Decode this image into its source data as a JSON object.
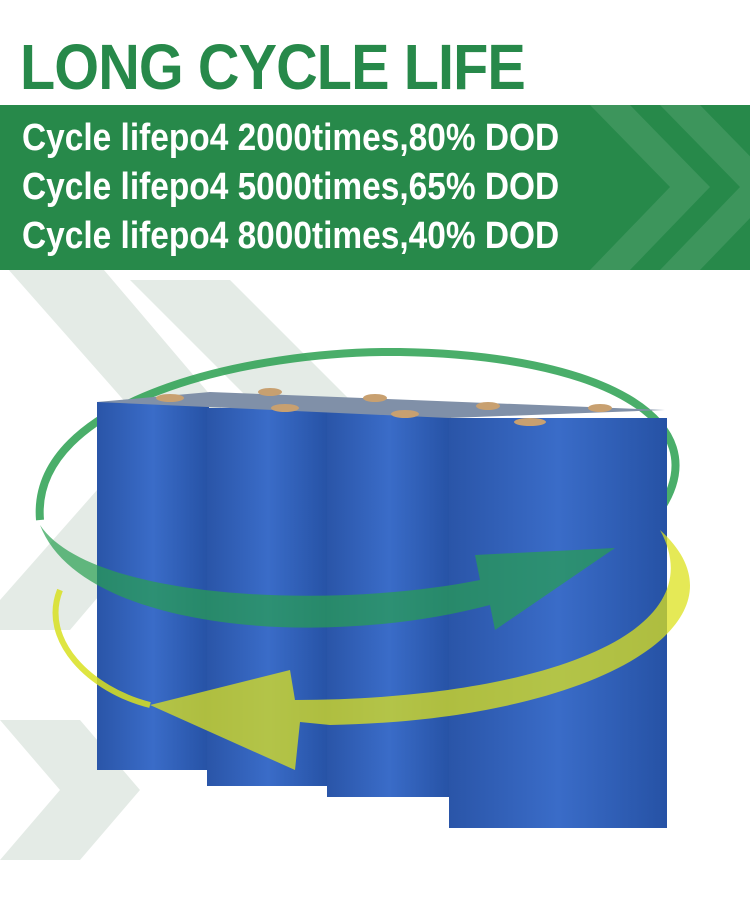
{
  "title": "LONG CYCLE LIFE",
  "specs": [
    "Cycle lifepo4 2000times,80% DOD",
    "Cycle lifepo4 5000times,65% DOD",
    "Cycle lifepo4 8000times,40% DOD"
  ],
  "colors": {
    "brand_green": "#27894a",
    "battery_blue": "#2f5fb8",
    "arrow_green": "#2aa050",
    "arrow_yellow": "#d8e020",
    "chevron_bg": "#e4ebe6"
  },
  "battery_cells": 4
}
